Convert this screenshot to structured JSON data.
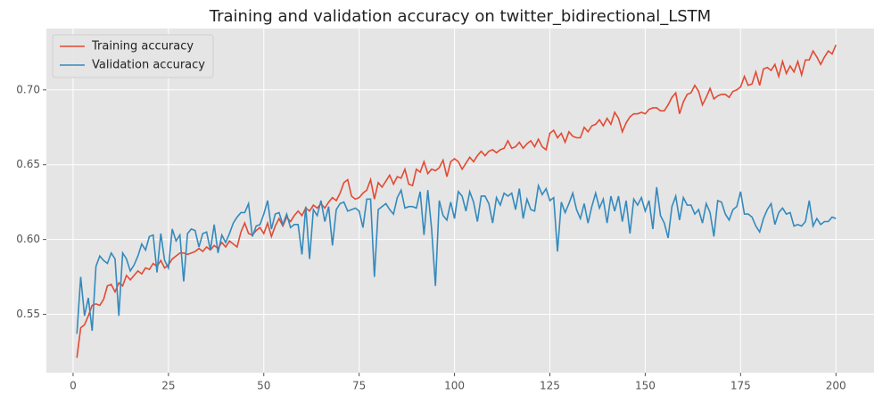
{
  "chart_data": {
    "type": "line",
    "title": "Training and validation accuracy on twitter_bidirectional_LSTM",
    "x": [
      1,
      2,
      3,
      4,
      5,
      6,
      7,
      8,
      9,
      10,
      11,
      12,
      13,
      14,
      15,
      16,
      17,
      18,
      19,
      20,
      21,
      22,
      23,
      24,
      25,
      26,
      27,
      28,
      29,
      30,
      31,
      32,
      33,
      34,
      35,
      36,
      37,
      38,
      39,
      40,
      41,
      42,
      43,
      44,
      45,
      46,
      47,
      48,
      49,
      50,
      51,
      52,
      53,
      54,
      55,
      56,
      57,
      58,
      59,
      60,
      61,
      62,
      63,
      64,
      65,
      66,
      67,
      68,
      69,
      70,
      71,
      72,
      73,
      74,
      75,
      76,
      77,
      78,
      79,
      80,
      81,
      82,
      83,
      84,
      85,
      86,
      87,
      88,
      89,
      90,
      91,
      92,
      93,
      94,
      95,
      96,
      97,
      98,
      99,
      100,
      101,
      102,
      103,
      104,
      105,
      106,
      107,
      108,
      109,
      110,
      111,
      112,
      113,
      114,
      115,
      116,
      117,
      118,
      119,
      120,
      121,
      122,
      123,
      124,
      125,
      126,
      127,
      128,
      129,
      130,
      131,
      132,
      133,
      134,
      135,
      136,
      137,
      138,
      139,
      140,
      141,
      142,
      143,
      144,
      145,
      146,
      147,
      148,
      149,
      150,
      151,
      152,
      153,
      154,
      155,
      156,
      157,
      158,
      159,
      160,
      161,
      162,
      163,
      164,
      165,
      166,
      167,
      168,
      169,
      170,
      171,
      172,
      173,
      174,
      175,
      176,
      177,
      178,
      179,
      180,
      181,
      182,
      183,
      184,
      185,
      186,
      187,
      188,
      189,
      190,
      191,
      192,
      193,
      194,
      195,
      196,
      197,
      198,
      199,
      200
    ],
    "series": [
      {
        "name": "Training accuracy",
        "color": "#E24A33",
        "values": [
          0.521,
          0.541,
          0.543,
          0.549,
          0.556,
          0.557,
          0.556,
          0.56,
          0.569,
          0.57,
          0.565,
          0.571,
          0.569,
          0.576,
          0.573,
          0.576,
          0.579,
          0.577,
          0.581,
          0.58,
          0.584,
          0.582,
          0.586,
          0.581,
          0.583,
          0.587,
          0.589,
          0.591,
          0.591,
          0.59,
          0.591,
          0.592,
          0.594,
          0.592,
          0.595,
          0.593,
          0.596,
          0.594,
          0.598,
          0.595,
          0.599,
          0.597,
          0.595,
          0.605,
          0.611,
          0.604,
          0.603,
          0.606,
          0.608,
          0.604,
          0.611,
          0.602,
          0.609,
          0.614,
          0.609,
          0.615,
          0.612,
          0.616,
          0.619,
          0.616,
          0.621,
          0.619,
          0.623,
          0.621,
          0.624,
          0.621,
          0.625,
          0.628,
          0.626,
          0.631,
          0.638,
          0.64,
          0.629,
          0.627,
          0.628,
          0.631,
          0.633,
          0.64,
          0.627,
          0.638,
          0.635,
          0.639,
          0.643,
          0.637,
          0.642,
          0.641,
          0.647,
          0.637,
          0.636,
          0.647,
          0.645,
          0.652,
          0.644,
          0.647,
          0.646,
          0.648,
          0.653,
          0.642,
          0.652,
          0.654,
          0.652,
          0.647,
          0.651,
          0.655,
          0.652,
          0.656,
          0.659,
          0.656,
          0.659,
          0.66,
          0.658,
          0.66,
          0.661,
          0.666,
          0.661,
          0.662,
          0.665,
          0.661,
          0.664,
          0.666,
          0.662,
          0.667,
          0.662,
          0.66,
          0.671,
          0.673,
          0.668,
          0.671,
          0.665,
          0.672,
          0.669,
          0.668,
          0.668,
          0.675,
          0.672,
          0.676,
          0.677,
          0.68,
          0.676,
          0.681,
          0.677,
          0.685,
          0.681,
          0.672,
          0.678,
          0.682,
          0.684,
          0.684,
          0.685,
          0.684,
          0.687,
          0.688,
          0.688,
          0.686,
          0.686,
          0.69,
          0.695,
          0.698,
          0.684,
          0.692,
          0.697,
          0.698,
          0.703,
          0.699,
          0.69,
          0.695,
          0.701,
          0.694,
          0.696,
          0.697,
          0.697,
          0.695,
          0.699,
          0.7,
          0.702,
          0.709,
          0.703,
          0.704,
          0.712,
          0.703,
          0.714,
          0.715,
          0.713,
          0.717,
          0.709,
          0.719,
          0.711,
          0.716,
          0.712,
          0.719,
          0.71,
          0.72,
          0.72,
          0.726,
          0.722,
          0.717,
          0.722,
          0.726,
          0.724,
          0.73
        ]
      },
      {
        "name": "Validation accuracy",
        "color": "#348ABD",
        "values": [
          0.537,
          0.575,
          0.549,
          0.561,
          0.539,
          0.582,
          0.589,
          0.586,
          0.584,
          0.591,
          0.587,
          0.549,
          0.591,
          0.587,
          0.579,
          0.583,
          0.589,
          0.597,
          0.593,
          0.602,
          0.603,
          0.578,
          0.604,
          0.586,
          0.581,
          0.607,
          0.599,
          0.603,
          0.572,
          0.604,
          0.607,
          0.606,
          0.595,
          0.604,
          0.605,
          0.593,
          0.61,
          0.591,
          0.603,
          0.598,
          0.604,
          0.611,
          0.615,
          0.618,
          0.618,
          0.624,
          0.602,
          0.609,
          0.61,
          0.617,
          0.626,
          0.607,
          0.617,
          0.618,
          0.61,
          0.617,
          0.608,
          0.61,
          0.61,
          0.59,
          0.622,
          0.587,
          0.62,
          0.616,
          0.626,
          0.612,
          0.622,
          0.596,
          0.62,
          0.624,
          0.625,
          0.619,
          0.62,
          0.621,
          0.619,
          0.608,
          0.627,
          0.627,
          0.575,
          0.62,
          0.622,
          0.624,
          0.62,
          0.617,
          0.628,
          0.633,
          0.621,
          0.622,
          0.622,
          0.621,
          0.632,
          0.603,
          0.633,
          0.607,
          0.569,
          0.626,
          0.616,
          0.613,
          0.625,
          0.614,
          0.632,
          0.629,
          0.619,
          0.632,
          0.625,
          0.612,
          0.629,
          0.629,
          0.624,
          0.611,
          0.628,
          0.623,
          0.631,
          0.629,
          0.631,
          0.62,
          0.634,
          0.614,
          0.627,
          0.62,
          0.619,
          0.636,
          0.63,
          0.634,
          0.626,
          0.628,
          0.592,
          0.625,
          0.618,
          0.624,
          0.631,
          0.62,
          0.614,
          0.624,
          0.611,
          0.622,
          0.631,
          0.621,
          0.627,
          0.611,
          0.629,
          0.619,
          0.629,
          0.612,
          0.626,
          0.604,
          0.627,
          0.623,
          0.628,
          0.619,
          0.626,
          0.607,
          0.635,
          0.616,
          0.611,
          0.601,
          0.622,
          0.629,
          0.613,
          0.628,
          0.623,
          0.623,
          0.617,
          0.62,
          0.611,
          0.624,
          0.618,
          0.602,
          0.626,
          0.625,
          0.617,
          0.613,
          0.62,
          0.622,
          0.632,
          0.617,
          0.617,
          0.615,
          0.609,
          0.605,
          0.614,
          0.62,
          0.624,
          0.61,
          0.618,
          0.621,
          0.617,
          0.618,
          0.609,
          0.61,
          0.609,
          0.612,
          0.626,
          0.609,
          0.614,
          0.61,
          0.612,
          0.612,
          0.615,
          0.614
        ]
      }
    ],
    "xlim": [
      -7,
      210
    ],
    "ylim": [
      0.511,
      0.741
    ],
    "xticks": [
      0,
      25,
      50,
      75,
      100,
      125,
      150,
      175,
      200
    ],
    "yticks": [
      0.55,
      {
        "value": 0.6,
        "label": "0.60"
      },
      0.65,
      {
        "value": 0.7,
        "label": "0.70"
      }
    ],
    "grid": true,
    "legend": "upper left"
  }
}
